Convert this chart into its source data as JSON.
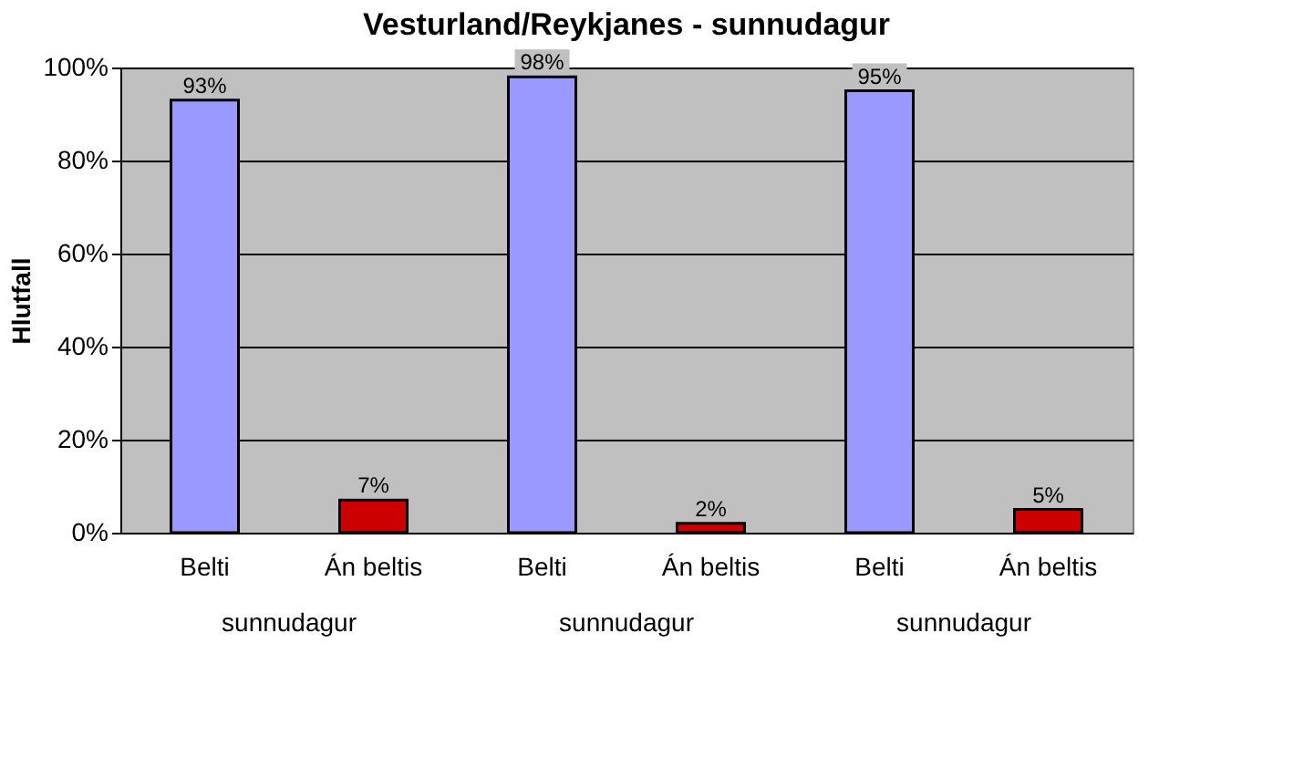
{
  "chart_data": {
    "type": "bar",
    "title": "Vesturland/Reykjanes - sunnudagur",
    "ylabel": "Hlutfall",
    "categories": [
      "Belti",
      "Án beltis",
      "Belti",
      "Án beltis",
      "Belti",
      "Án beltis"
    ],
    "values": [
      93,
      7,
      98,
      2,
      95,
      5
    ],
    "colors": [
      "#9999ff",
      "#cc0000",
      "#9999ff",
      "#cc0000",
      "#9999ff",
      "#cc0000"
    ],
    "value_labels": [
      "93%",
      "7%",
      "98%",
      "2%",
      "95%",
      "5%"
    ],
    "annotations": [
      "sunnudagur",
      "sunnudagur",
      "sunnudagur"
    ],
    "ylim": [
      0,
      100
    ],
    "yticks": [
      {
        "value": 0,
        "label": "0%"
      },
      {
        "value": 20,
        "label": "20%"
      },
      {
        "value": 40,
        "label": "40%"
      },
      {
        "value": 60,
        "label": "60%"
      },
      {
        "value": 80,
        "label": "80%"
      },
      {
        "value": 100,
        "label": "100%"
      }
    ],
    "grid": "y"
  }
}
